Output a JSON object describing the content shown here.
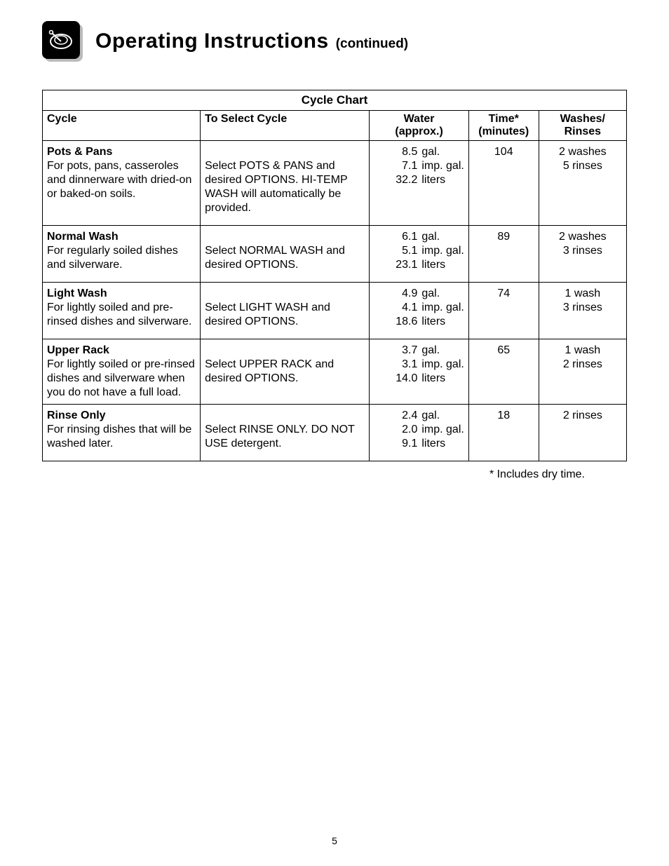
{
  "header": {
    "title_main": "Operating  Instructions",
    "title_sub": "(continued)"
  },
  "chart": {
    "title": "Cycle Chart",
    "columns": {
      "cycle": "Cycle",
      "select": "To Select Cycle",
      "water_line1": "Water",
      "water_line2": "(approx.)",
      "time_line1": "Time*",
      "time_line2": "(minutes)",
      "wr_line1": "Washes/",
      "wr_line2": "Rinses"
    },
    "rows": [
      {
        "name": "Pots & Pans",
        "desc": "For pots, pans, casseroles and dinnerware with dried-on or baked-on soils.",
        "select": "Select POTS & PANS and desired OPTIONS. HI-TEMP WASH will automatically be provided.",
        "gal": "8.5",
        "imp": "7.1",
        "liters": "32.2",
        "time": "104",
        "wr": "2 washes\n5 rinses",
        "tight": false
      },
      {
        "name": "Normal Wash",
        "desc": "For regularly soiled dishes and silverware.",
        "select": "Select NORMAL WASH and desired OPTIONS.",
        "gal": "6.1",
        "imp": "5.1",
        "liters": "23.1",
        "time": "89",
        "wr": "2 washes\n3 rinses",
        "tight": false
      },
      {
        "name": "Light Wash",
        "desc": "For lightly soiled and pre-rinsed dishes and silverware.",
        "select": "Select LIGHT WASH and desired OPTIONS.",
        "gal": "4.9",
        "imp": "4.1",
        "liters": "18.6",
        "time": "74",
        "wr": "1 wash\n3 rinses",
        "tight": false
      },
      {
        "name": "Upper Rack",
        "desc": "For lightly soiled or pre-rinsed dishes and silverware when you do not have a full load.",
        "select": "Select UPPER RACK and desired OPTIONS.",
        "gal": "3.7",
        "imp": "3.1",
        "liters": "14.0",
        "time": "65",
        "wr": "1 wash\n2 rinses",
        "tight": true
      },
      {
        "name": "Rinse Only",
        "desc": "For rinsing dishes that will be washed later.",
        "select": "Select RINSE ONLY. DO NOT USE detergent.",
        "gal": "2.4",
        "imp": "2.0",
        "liters": "9.1",
        "time": "18",
        "wr": "2 rinses",
        "tight": false
      }
    ],
    "water_units": {
      "gal": "gal.",
      "imp": "imp. gal.",
      "liters": "liters"
    }
  },
  "footnote": "* Includes dry time.",
  "page_number": "5"
}
